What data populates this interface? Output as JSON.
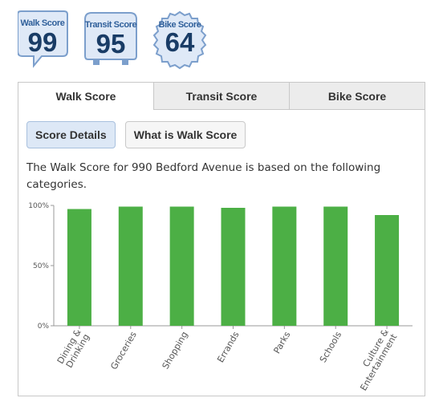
{
  "badges": [
    {
      "label": "Walk Score",
      "value": "99"
    },
    {
      "label": "Transit Score",
      "value": "95"
    },
    {
      "label": "Bike Score",
      "value": "64"
    }
  ],
  "tabs": [
    {
      "label": "Walk Score",
      "active": true
    },
    {
      "label": "Transit Score",
      "active": false
    },
    {
      "label": "Bike Score",
      "active": false
    }
  ],
  "buttons": {
    "score_details": "Score Details",
    "what_is": "What is Walk Score"
  },
  "description": "The Walk Score for 990 Bedford Avenue is based on the following categories.",
  "colors": {
    "bar": "#4caf45",
    "badge": "#2f5f9a",
    "badge_fill": "#dfe9f7"
  },
  "chart_data": {
    "type": "bar",
    "categories": [
      "Dining & Drinking",
      "Groceries",
      "Shopping",
      "Errands",
      "Parks",
      "Schools",
      "Culture & Entertainment"
    ],
    "values": [
      97,
      99,
      99,
      98,
      99,
      99,
      92
    ],
    "ylim": [
      0,
      100
    ],
    "yticks": [
      "0%",
      "50%",
      "100%"
    ],
    "title": "",
    "xlabel": "",
    "ylabel": ""
  }
}
